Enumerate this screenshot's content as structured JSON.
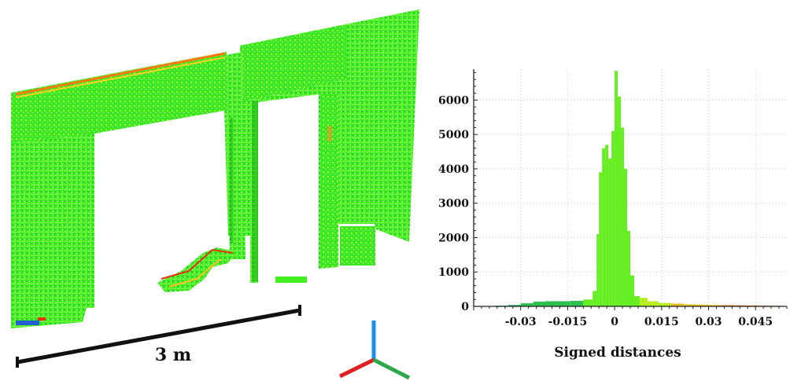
{
  "scene": {
    "scale_bar_label": "3 m",
    "colors": {
      "cloud_green": "#33ee22",
      "cloud_yellow": "#c8ee10",
      "cloud_orange": "#ff8800",
      "cloud_red": "#e83010",
      "cloud_blue": "#2060d0"
    },
    "axes_gizmo": {
      "x_color": "#2aa84a",
      "y_color": "#e02020",
      "z_color": "#1e90e8",
      "icon": "axes-triad-icon"
    }
  },
  "chart_data": {
    "type": "bar",
    "title": "",
    "xlabel": "Signed distances",
    "ylabel": "",
    "xlim": [
      -0.045,
      0.055
    ],
    "ylim": [
      0,
      6900
    ],
    "x_ticks": [
      -0.03,
      -0.015,
      0,
      0.015,
      0.03,
      0.045
    ],
    "x_tick_labels": [
      "-0.03",
      "-0.015",
      "0",
      "0.015",
      "0.03",
      "0.045"
    ],
    "y_ticks": [
      0,
      1000,
      2000,
      3000,
      4000,
      5000,
      6000
    ],
    "y_tick_labels": [
      "0",
      "1000",
      "2000",
      "3000",
      "4000",
      "5000",
      "6000"
    ],
    "grid": true,
    "bins": [
      {
        "x": -0.044,
        "value": 5
      },
      {
        "x": -0.04,
        "value": 10
      },
      {
        "x": -0.036,
        "value": 20
      },
      {
        "x": -0.032,
        "value": 40
      },
      {
        "x": -0.028,
        "value": 90
      },
      {
        "x": -0.024,
        "value": 140
      },
      {
        "x": -0.02,
        "value": 150
      },
      {
        "x": -0.016,
        "value": 150
      },
      {
        "x": -0.012,
        "value": 160
      },
      {
        "x": -0.008,
        "value": 200
      },
      {
        "x": -0.006,
        "value": 450
      },
      {
        "x": -0.0055,
        "value": 2100
      },
      {
        "x": -0.0045,
        "value": 3900
      },
      {
        "x": -0.0035,
        "value": 4600
      },
      {
        "x": -0.0025,
        "value": 4700
      },
      {
        "x": -0.0015,
        "value": 4300
      },
      {
        "x": -0.0005,
        "value": 5100
      },
      {
        "x": 0.0005,
        "value": 6850
      },
      {
        "x": 0.0015,
        "value": 6100
      },
      {
        "x": 0.0025,
        "value": 5200
      },
      {
        "x": 0.0035,
        "value": 4000
      },
      {
        "x": 0.0045,
        "value": 2200
      },
      {
        "x": 0.0055,
        "value": 900
      },
      {
        "x": 0.007,
        "value": 300
      },
      {
        "x": 0.009,
        "value": 250
      },
      {
        "x": 0.012,
        "value": 150
      },
      {
        "x": 0.016,
        "value": 100
      },
      {
        "x": 0.02,
        "value": 80
      },
      {
        "x": 0.024,
        "value": 60
      },
      {
        "x": 0.028,
        "value": 50
      },
      {
        "x": 0.032,
        "value": 40
      },
      {
        "x": 0.036,
        "value": 35
      },
      {
        "x": 0.04,
        "value": 30
      },
      {
        "x": 0.044,
        "value": 25
      },
      {
        "x": 0.048,
        "value": 20
      },
      {
        "x": 0.052,
        "value": 15
      }
    ]
  }
}
